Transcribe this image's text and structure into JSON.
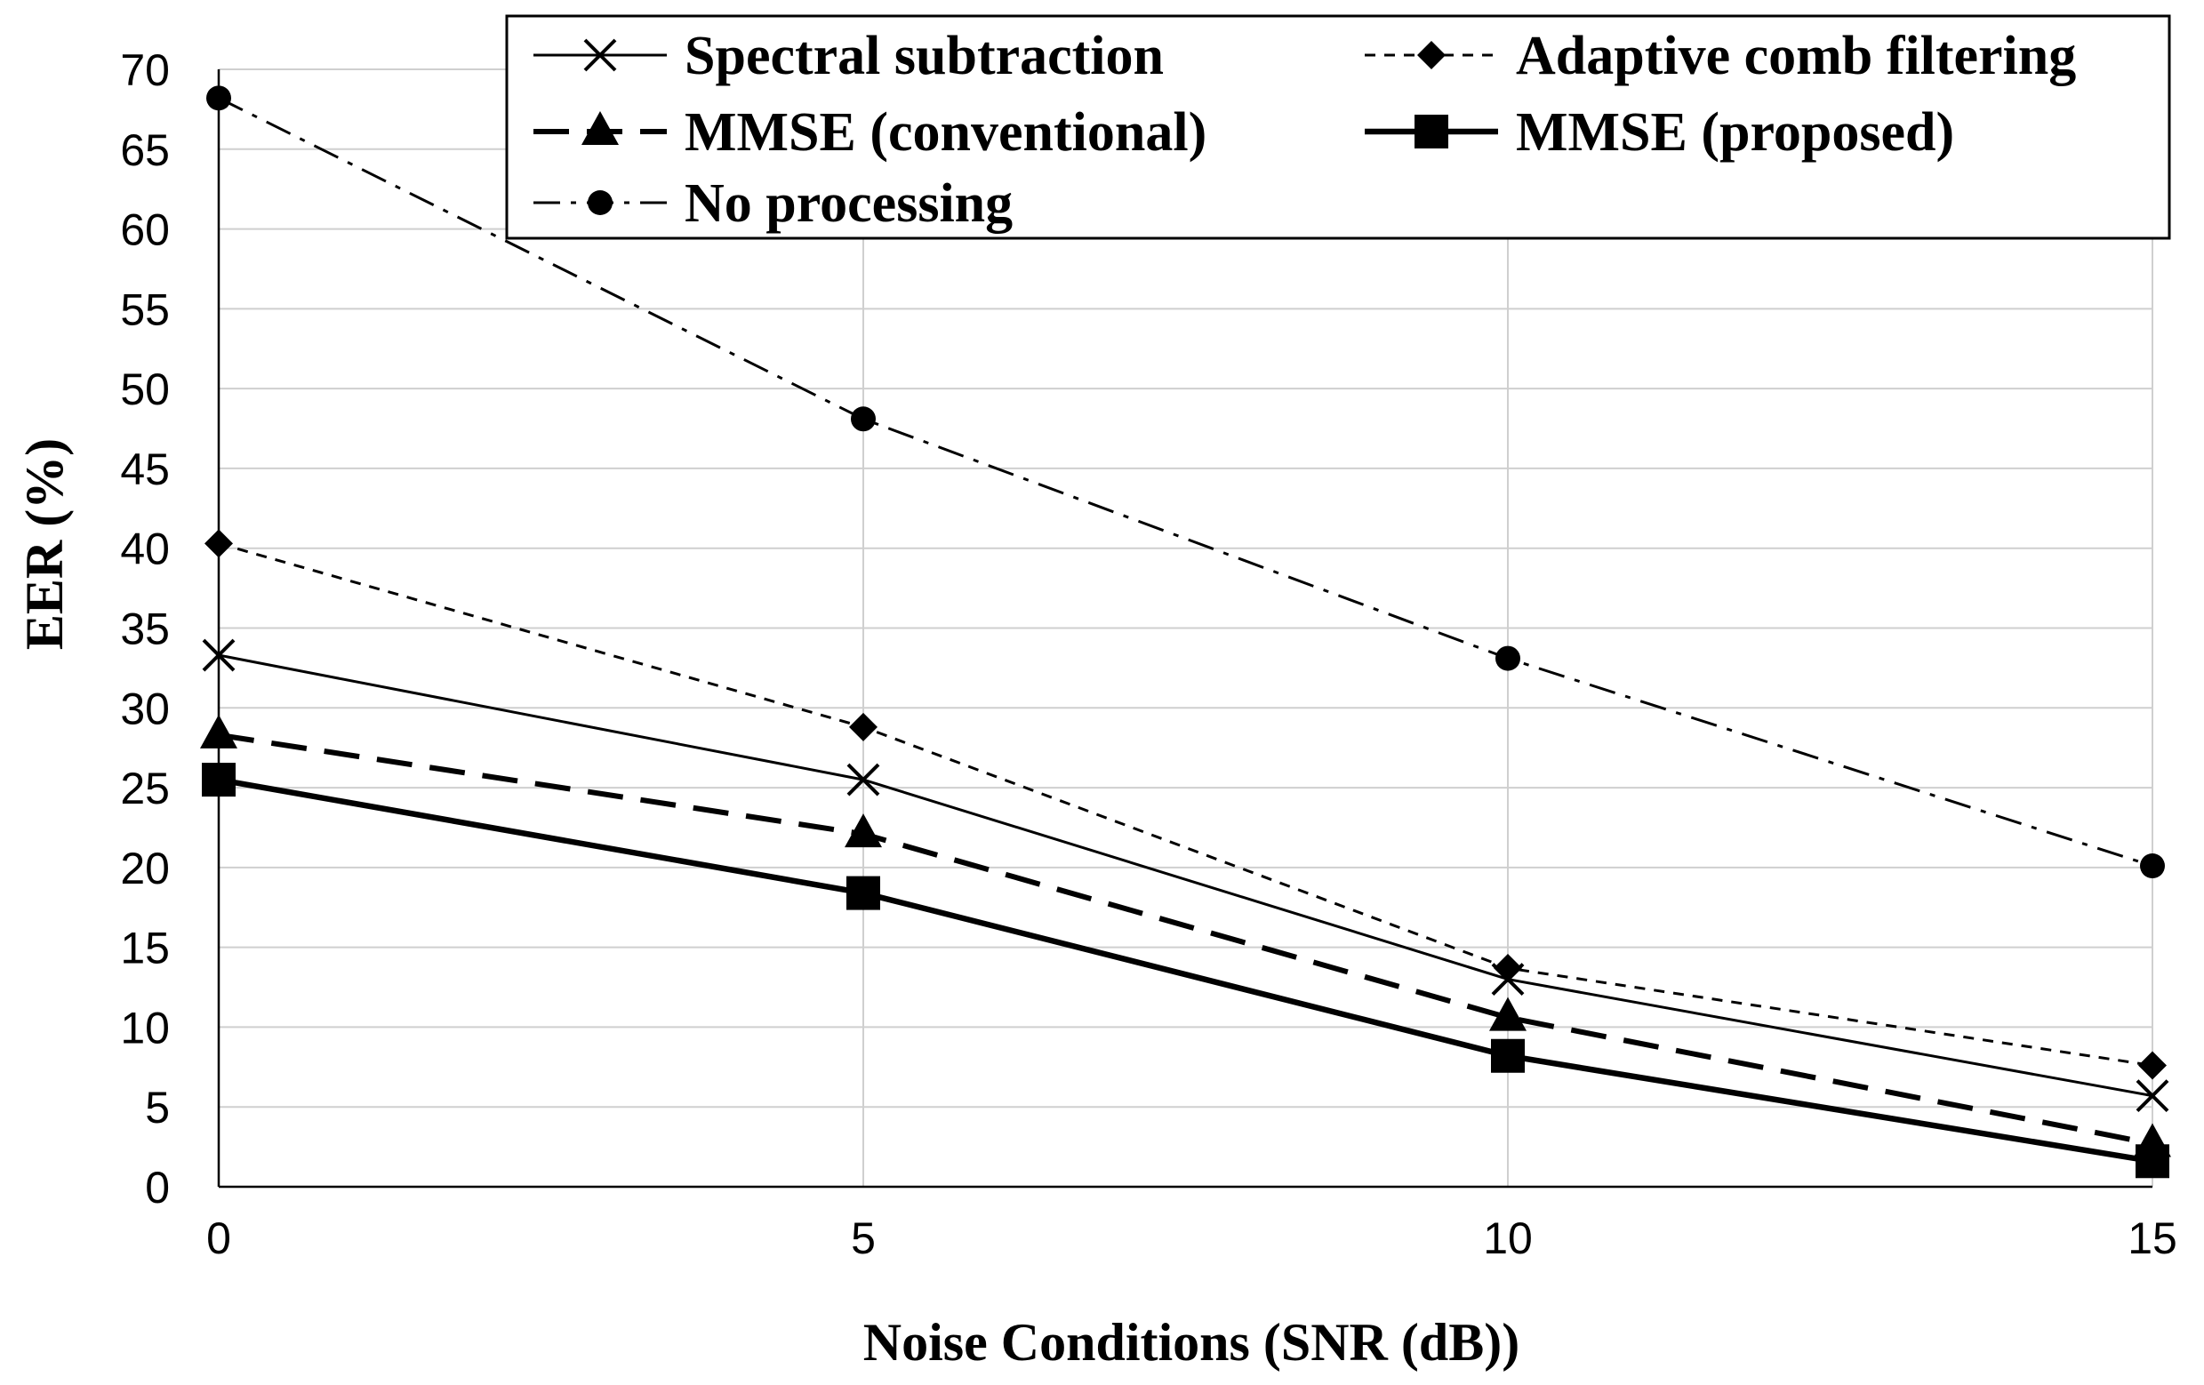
{
  "chart_data": {
    "type": "line",
    "title": "",
    "xlabel": "Noise Conditions (SNR (dB))",
    "ylabel": "EER (%)",
    "x": [
      0,
      5,
      10,
      15
    ],
    "x_ticks": [
      0,
      5,
      10,
      15
    ],
    "y_ticks": [
      0,
      5,
      10,
      15,
      20,
      25,
      30,
      35,
      40,
      45,
      50,
      55,
      60,
      65,
      70
    ],
    "xlim": [
      0,
      15
    ],
    "ylim": [
      0,
      70
    ],
    "grid": true,
    "legend_position": "top-right",
    "series": [
      {
        "name": "Spectral subtraction",
        "marker": "x",
        "line": "solid-thin",
        "values": [
          33.3,
          25.5,
          13.0,
          5.7
        ]
      },
      {
        "name": "Adaptive comb filtering",
        "marker": "diamond",
        "line": "short-dash",
        "values": [
          40.3,
          28.8,
          13.7,
          7.6
        ]
      },
      {
        "name": "MMSE (conventional)",
        "marker": "triangle",
        "line": "long-dash",
        "values": [
          28.3,
          22.1,
          10.6,
          2.7
        ]
      },
      {
        "name": "MMSE (proposed)",
        "marker": "square",
        "line": "solid-thick",
        "values": [
          25.5,
          18.4,
          8.2,
          1.6
        ]
      },
      {
        "name": "No processing",
        "marker": "circle",
        "line": "dash-dot",
        "values": [
          68.2,
          48.1,
          33.1,
          20.1
        ]
      }
    ]
  }
}
